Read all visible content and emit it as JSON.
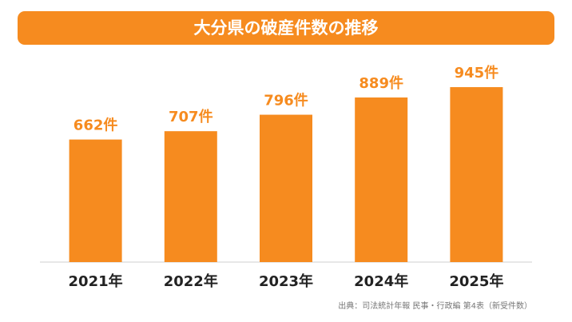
{
  "chart_data": {
    "type": "bar",
    "title": "大分県の破産件数の推移",
    "categories": [
      "2021年",
      "2022年",
      "2023年",
      "2024年",
      "2025年"
    ],
    "values": [
      662,
      707,
      796,
      889,
      945
    ],
    "value_labels": [
      "662件",
      "707件",
      "796件",
      "889件",
      "945件"
    ],
    "color": "#f68b1f",
    "source": "出典：司法統計年報 民事・行政編 第4表（新受件数）"
  }
}
